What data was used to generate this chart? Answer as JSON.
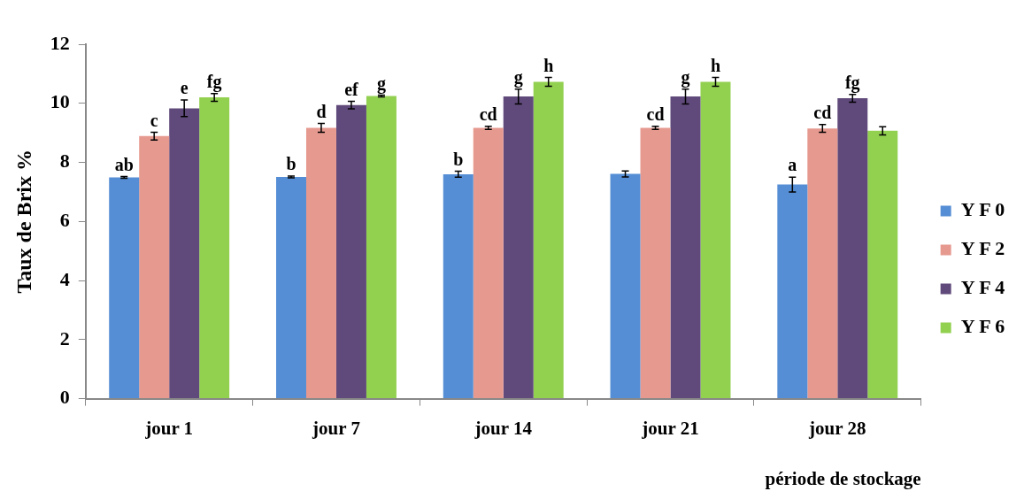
{
  "chart_data": {
    "type": "bar",
    "xlabel": "période de stockage",
    "ylabel": "Taux de Brix %",
    "categories": [
      "jour 1",
      "jour 7",
      "jour 14",
      "jour 21",
      "jour 28"
    ],
    "ylim": [
      0,
      12
    ],
    "yticks": [
      0,
      2,
      4,
      6,
      8,
      10,
      12
    ],
    "grid": false,
    "legend": "right",
    "series": [
      {
        "name": "Y F 0",
        "color": "#558ed5",
        "values": [
          7.49,
          7.51,
          7.6,
          7.61,
          7.25
        ],
        "errors": [
          0.03,
          0.03,
          0.1,
          0.1,
          0.25
        ],
        "value_labels": [
          "ab",
          "b",
          "b",
          null,
          "a"
        ]
      },
      {
        "name": "Y F 2",
        "color": "#e6998f",
        "values": [
          8.89,
          9.17,
          9.17,
          9.17,
          9.15
        ],
        "errors": [
          0.13,
          0.15,
          0.05,
          0.05,
          0.13
        ],
        "value_labels": [
          "c",
          "d",
          "cd",
          "cd",
          "cd"
        ]
      },
      {
        "name": "Y F 4",
        "color": "#604a7b",
        "values": [
          9.83,
          9.94,
          10.23,
          10.23,
          10.17
        ],
        "errors": [
          0.28,
          0.13,
          0.25,
          0.25,
          0.13
        ],
        "value_labels": [
          "e",
          "ef",
          "g",
          "g",
          "fg"
        ]
      },
      {
        "name": "Y F 6",
        "color": "#92d050",
        "values": [
          10.2,
          10.25,
          10.73,
          10.73,
          9.07
        ],
        "errors": [
          0.13,
          0.03,
          0.15,
          0.15,
          0.14
        ],
        "value_labels": [
          "fg",
          "g",
          "h",
          "h",
          null
        ]
      }
    ]
  }
}
